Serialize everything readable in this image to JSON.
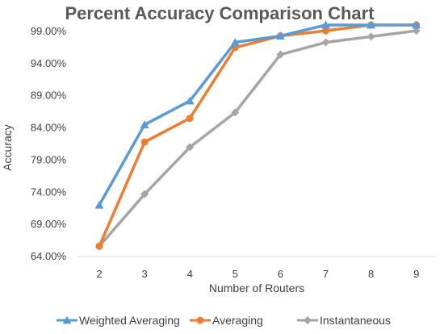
{
  "chart_data": {
    "type": "line",
    "title": "Percent Accuracy Comparison Chart",
    "xlabel": "Number of Routers",
    "ylabel": "Accuracy",
    "x": [
      2,
      3,
      4,
      5,
      6,
      7,
      8,
      9
    ],
    "x_tick_labels": [
      "2",
      "3",
      "4",
      "5",
      "6",
      "7",
      "8",
      "9"
    ],
    "y_tick_labels": [
      "64.00%",
      "69.00%",
      "74.00%",
      "79.00%",
      "84.00%",
      "89.00%",
      "94.00%",
      "99.00%"
    ],
    "ylim": [
      64,
      100
    ],
    "grid": false,
    "legend_position": "bottom",
    "series": [
      {
        "name": "Weighted Averaging",
        "color": "#5b9bd5",
        "marker": "triangle",
        "values": [
          72.0,
          84.5,
          88.2,
          97.3,
          98.3,
          100.0,
          100.0,
          100.0
        ]
      },
      {
        "name": "Averaging",
        "color": "#ed7d31",
        "marker": "circle",
        "values": [
          65.6,
          81.8,
          85.5,
          96.5,
          98.3,
          99.1,
          100.0,
          100.0
        ]
      },
      {
        "name": "Instantaneous",
        "color": "#a5a5a5",
        "marker": "diamond",
        "values": [
          65.6,
          73.7,
          81.0,
          86.4,
          95.4,
          97.3,
          98.2,
          99.1
        ]
      }
    ]
  }
}
